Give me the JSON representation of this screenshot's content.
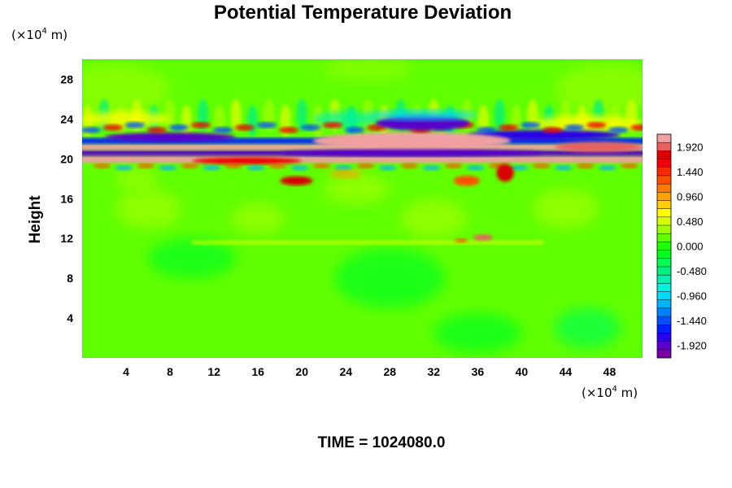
{
  "chart_data": {
    "type": "heatmap",
    "title": "Potential Temperature Deviation",
    "ylabel": "Height",
    "x_unit": {
      "prefix": "(×10",
      "exp": "4",
      "suffix": " m)"
    },
    "y_unit": {
      "prefix": "(×10",
      "exp": "4",
      "suffix": " m)"
    },
    "xlim": [
      0,
      51
    ],
    "ylim": [
      0,
      30
    ],
    "x_ticks": [
      "4",
      "8",
      "12",
      "16",
      "20",
      "24",
      "28",
      "32",
      "36",
      "40",
      "44",
      "48"
    ],
    "y_ticks": [
      "4",
      "8",
      "12",
      "16",
      "20",
      "24",
      "28"
    ],
    "colorbar": {
      "min": -2.16,
      "max": 2.16,
      "tick_labels": [
        "1.920",
        "1.440",
        "0.960",
        "0.480",
        "0.000",
        "-0.480",
        "-0.960",
        "-1.440",
        "-1.920"
      ],
      "colors": [
        "#7a00a8",
        "#5a00c8",
        "#2a00e8",
        "#0020ff",
        "#0050ff",
        "#0080ff",
        "#00b0ff",
        "#00d8ff",
        "#00f0e0",
        "#00f0b0",
        "#00f080",
        "#00ff50",
        "#00ff20",
        "#20ff00",
        "#60ff00",
        "#a0ff00",
        "#d8ff00",
        "#ffff00",
        "#ffd000",
        "#ffa000",
        "#ff7800",
        "#ff5000",
        "#ff2800",
        "#f00000",
        "#d80000",
        "#e86060",
        "#f0a0a0"
      ]
    },
    "features": [
      {
        "name": "stratospheric-band",
        "x": [
          0,
          51
        ],
        "y": [
          19.5,
          22.5
        ],
        "note": "strong alternating positive/negative deviations"
      },
      {
        "name": "negative-lobe",
        "x": [
          27,
          35
        ],
        "y": [
          23,
          24.5
        ],
        "value": -1.9
      },
      {
        "name": "positive-spot",
        "x": [
          36,
          37
        ],
        "y": [
          12,
          12.3
        ],
        "value": 1.9
      },
      {
        "name": "upper-wave-region",
        "x": [
          0,
          51
        ],
        "y": [
          22.5,
          26
        ],
        "note": "wave train with yellow/cyan streaks"
      }
    ]
  },
  "footer": {
    "time_text": "TIME = 1024080.0"
  }
}
